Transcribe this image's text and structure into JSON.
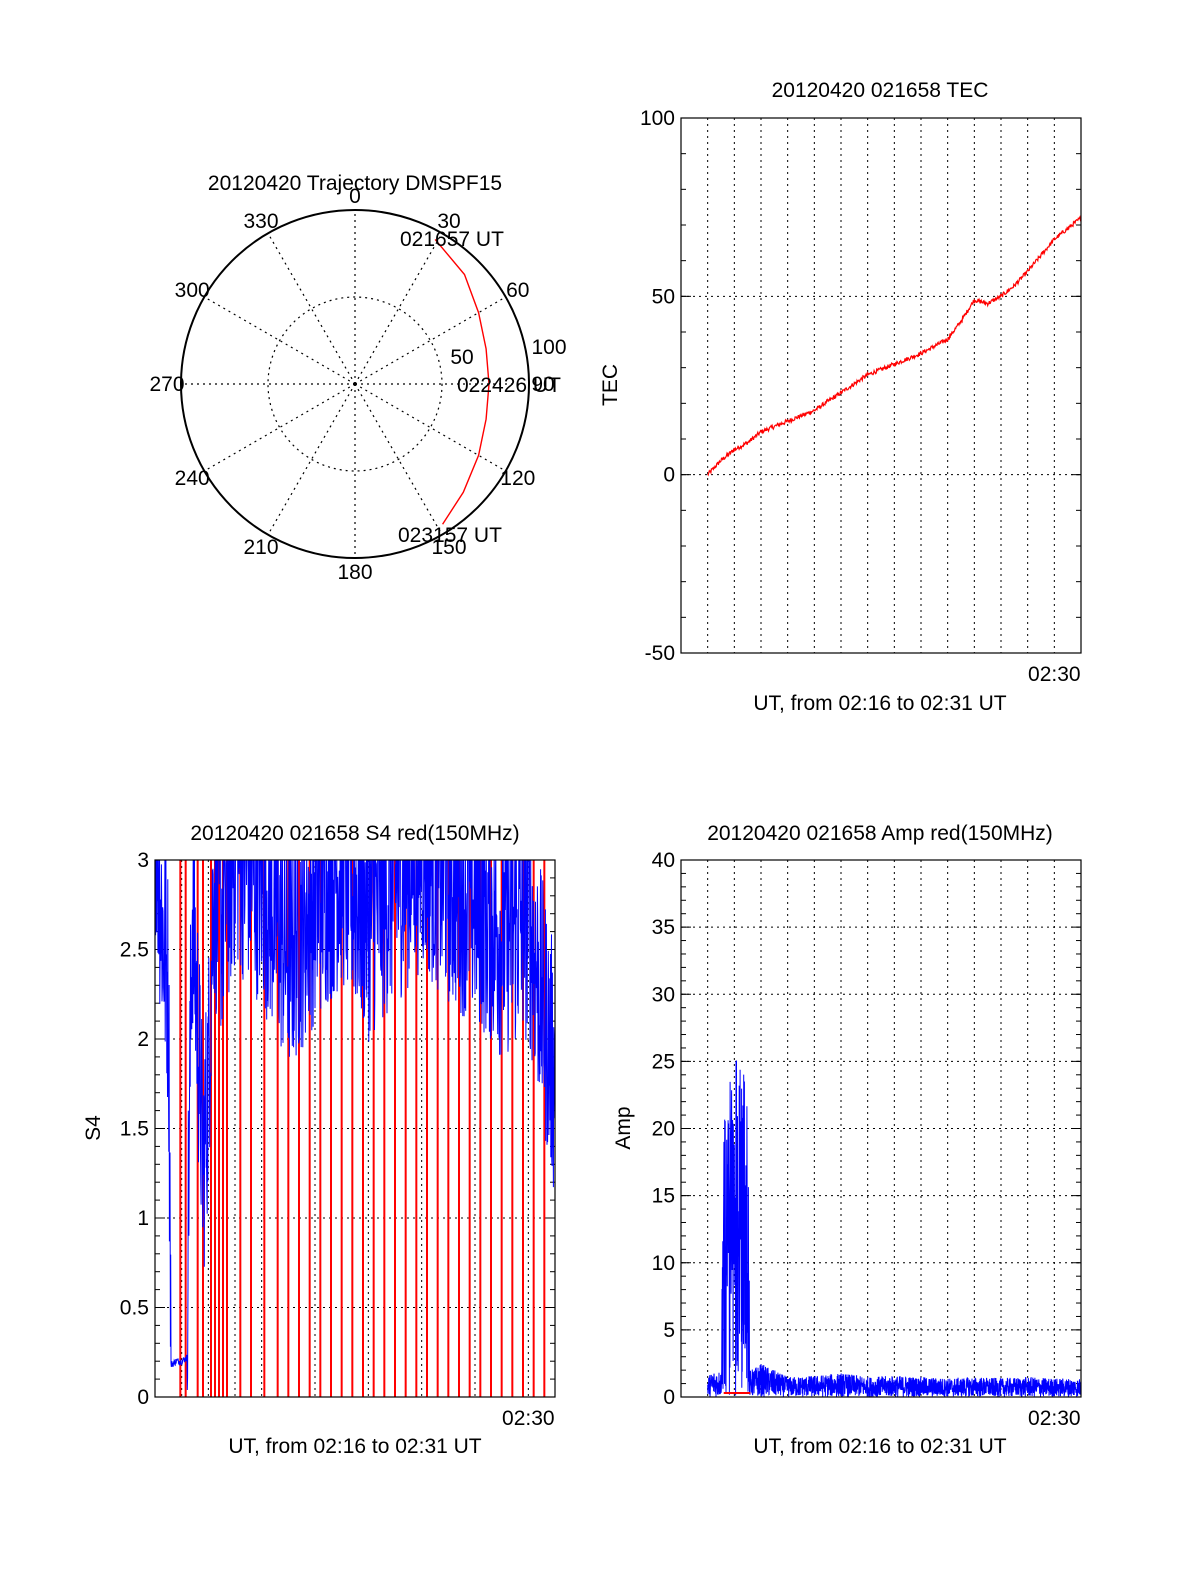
{
  "chart_data": [
    {
      "type": "polar",
      "title": "20120420 Trajectory DMSPF15",
      "angle_labels": [
        "0",
        "30",
        "60",
        "90",
        "120",
        "150",
        "180",
        "210",
        "240",
        "270",
        "300",
        "330"
      ],
      "radial_labels": [
        "50",
        "100"
      ],
      "rmax": 100,
      "grid": true,
      "series": [
        {
          "color": "#ff0000",
          "points": [
            {
              "az": 29,
              "el": 5
            },
            {
              "az": 45,
              "el": 11
            },
            {
              "az": 60,
              "el": 18
            },
            {
              "az": 75,
              "el": 22
            },
            {
              "az": 90,
              "el": 23
            },
            {
              "az": 105,
              "el": 22
            },
            {
              "az": 120,
              "el": 18
            },
            {
              "az": 135,
              "el": 12
            },
            {
              "az": 148,
              "el": 5
            }
          ]
        }
      ],
      "annotations": [
        "021657 UT",
        "022426 UT",
        "023157 UT"
      ]
    },
    {
      "type": "line",
      "title": "20120420 021658 TEC",
      "xlabel": "UT, from 02:16 to 02:31 UT",
      "ylabel": "TEC",
      "xlim": [
        0,
        15
      ],
      "ylim": [
        -50,
        100
      ],
      "yticks": [
        "-50",
        "0",
        "50",
        "100"
      ],
      "xtick_labels": [
        "02:30"
      ],
      "grid": true,
      "series": [
        {
          "color": "#ff0000",
          "x": [
            1,
            1.5,
            2,
            2.5,
            3,
            4,
            5,
            6,
            7,
            8,
            9,
            9.5,
            10,
            10.5,
            11,
            11.5,
            12,
            12.5,
            13,
            14,
            15
          ],
          "y": [
            0,
            4,
            7,
            9,
            12,
            15,
            18,
            23,
            28,
            31,
            34,
            36,
            38,
            43,
            49,
            48,
            50,
            53,
            57,
            66,
            72
          ]
        }
      ]
    },
    {
      "type": "line",
      "title": "20120420 021658 S4 red(150MHz)",
      "xlabel": "UT, from 02:16 to 02:31 UT",
      "ylabel": "S4",
      "xlim": [
        0,
        15
      ],
      "ylim": [
        0,
        3
      ],
      "yticks": [
        "0",
        "0.5",
        "1",
        "1.5",
        "2",
        "2.5",
        "3"
      ],
      "xtick_labels": [
        "02:30"
      ],
      "grid": true,
      "series": [
        {
          "color": "#0000ff",
          "x": [
            0,
            0.3,
            0.5,
            0.6,
            0.8,
            1.0,
            1.2,
            1.4,
            1.6,
            1.8,
            2.0,
            2.2,
            2.5,
            3,
            4,
            5,
            6,
            7,
            8,
            9,
            10,
            11,
            12,
            13,
            14,
            15
          ],
          "y": [
            3,
            2.3,
            2.0,
            0.18,
            0.2,
            0.2,
            0.22,
            2.5,
            1.8,
            1.0,
            1.5,
            2.6,
            2.4,
            2.8,
            2.6,
            2.2,
            2.5,
            2.7,
            2.4,
            2.6,
            2.8,
            2.6,
            2.5,
            2.3,
            2.4,
            1.5
          ]
        },
        {
          "color": "#ff0000",
          "spike_x": [
            0.95,
            1.15,
            1.6,
            1.8,
            2.1,
            2.25,
            2.4,
            2.55,
            2.7,
            3.2,
            3.6,
            4.1,
            4.6,
            5.0,
            5.4,
            5.8,
            6.2,
            6.6,
            7.0,
            7.4,
            7.8,
            8.2,
            8.6,
            9.0,
            9.4,
            9.8,
            10.2,
            10.6,
            11.0,
            11.4,
            11.8,
            12.2,
            12.6,
            13.0,
            13.4,
            13.8,
            14.2,
            14.6
          ]
        }
      ]
    },
    {
      "type": "line",
      "title": "20120420 021658 Amp red(150MHz)",
      "xlabel": "UT, from 02:16 to 02:31 UT",
      "ylabel": "Amp",
      "xlim": [
        0,
        15
      ],
      "ylim": [
        0,
        40
      ],
      "yticks": [
        "0",
        "5",
        "10",
        "15",
        "20",
        "25",
        "30",
        "35",
        "40"
      ],
      "xtick_labels": [
        "02:30"
      ],
      "grid": true,
      "series": [
        {
          "color": "#0000ff",
          "x": [
            1.0,
            1.2,
            1.5,
            1.6,
            2.0,
            2.5,
            2.6,
            3.0,
            3.5,
            4,
            5,
            6,
            7,
            8,
            9,
            10,
            11,
            12,
            13,
            14,
            15
          ],
          "y": [
            1.5,
            2.0,
            2.0,
            22,
            26,
            24,
            2.0,
            2.5,
            2.0,
            1.5,
            1.6,
            1.8,
            1.5,
            1.6,
            1.5,
            1.4,
            1.5,
            1.4,
            1.5,
            1.4,
            1.4
          ]
        },
        {
          "color": "#ff0000",
          "x": [
            1.6,
            2.6
          ],
          "y": [
            0.3,
            0.3
          ]
        }
      ]
    }
  ]
}
